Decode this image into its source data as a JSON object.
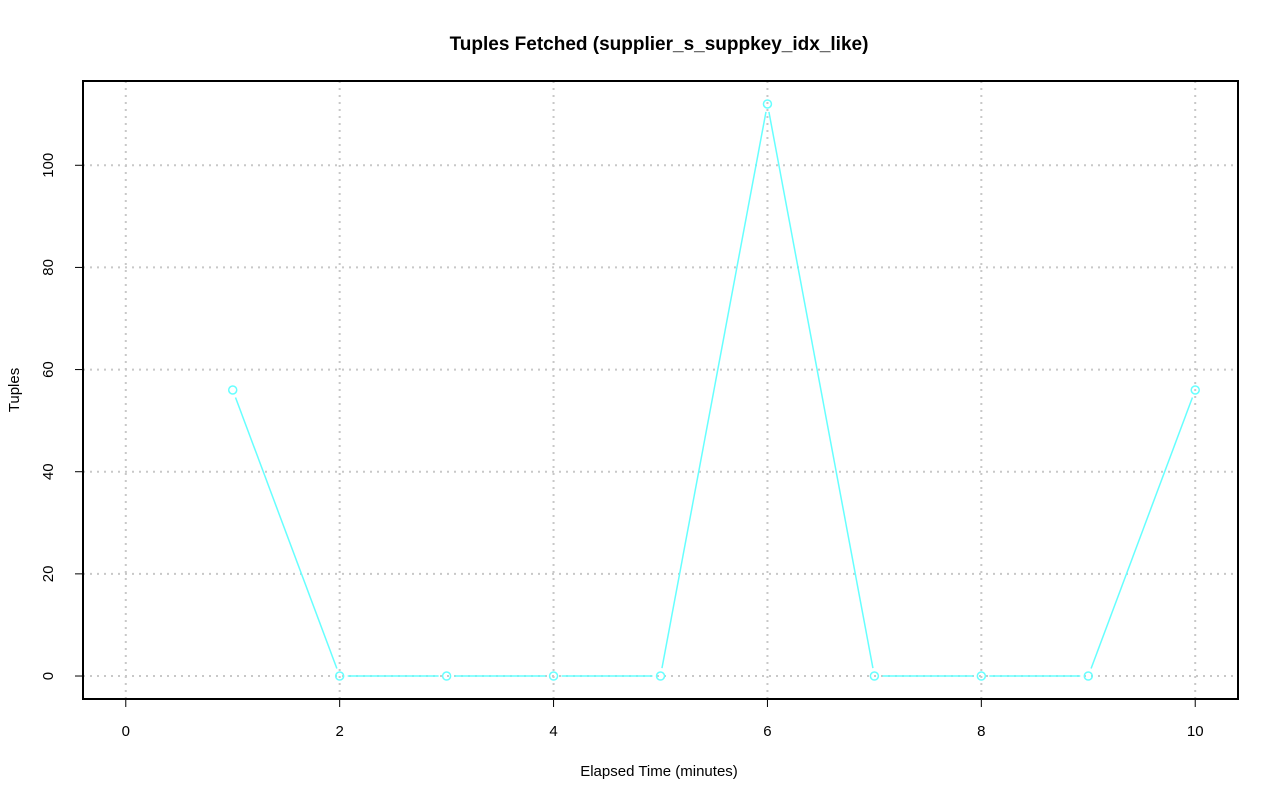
{
  "chart_data": {
    "type": "line",
    "title": "Tuples Fetched (supplier_s_suppkey_idx_like)",
    "xlabel": "Elapsed Time (minutes)",
    "ylabel": "Tuples",
    "x": [
      1,
      2,
      3,
      4,
      5,
      6,
      7,
      8,
      9,
      10
    ],
    "series": [
      {
        "values": [
          56,
          0,
          0,
          0,
          0,
          112,
          0,
          0,
          0,
          56
        ],
        "color": "#66FFFF"
      }
    ],
    "xlim": [
      -0.4,
      10.4
    ],
    "ylim": [
      -4.5,
      116.5
    ],
    "xticks": [
      "0",
      "2",
      "4",
      "6",
      "8",
      "10"
    ],
    "yticks": [
      "0",
      "20",
      "40",
      "60",
      "80",
      "100"
    ],
    "grid": true,
    "grid_style": "dotted",
    "markers": "open-circle"
  }
}
